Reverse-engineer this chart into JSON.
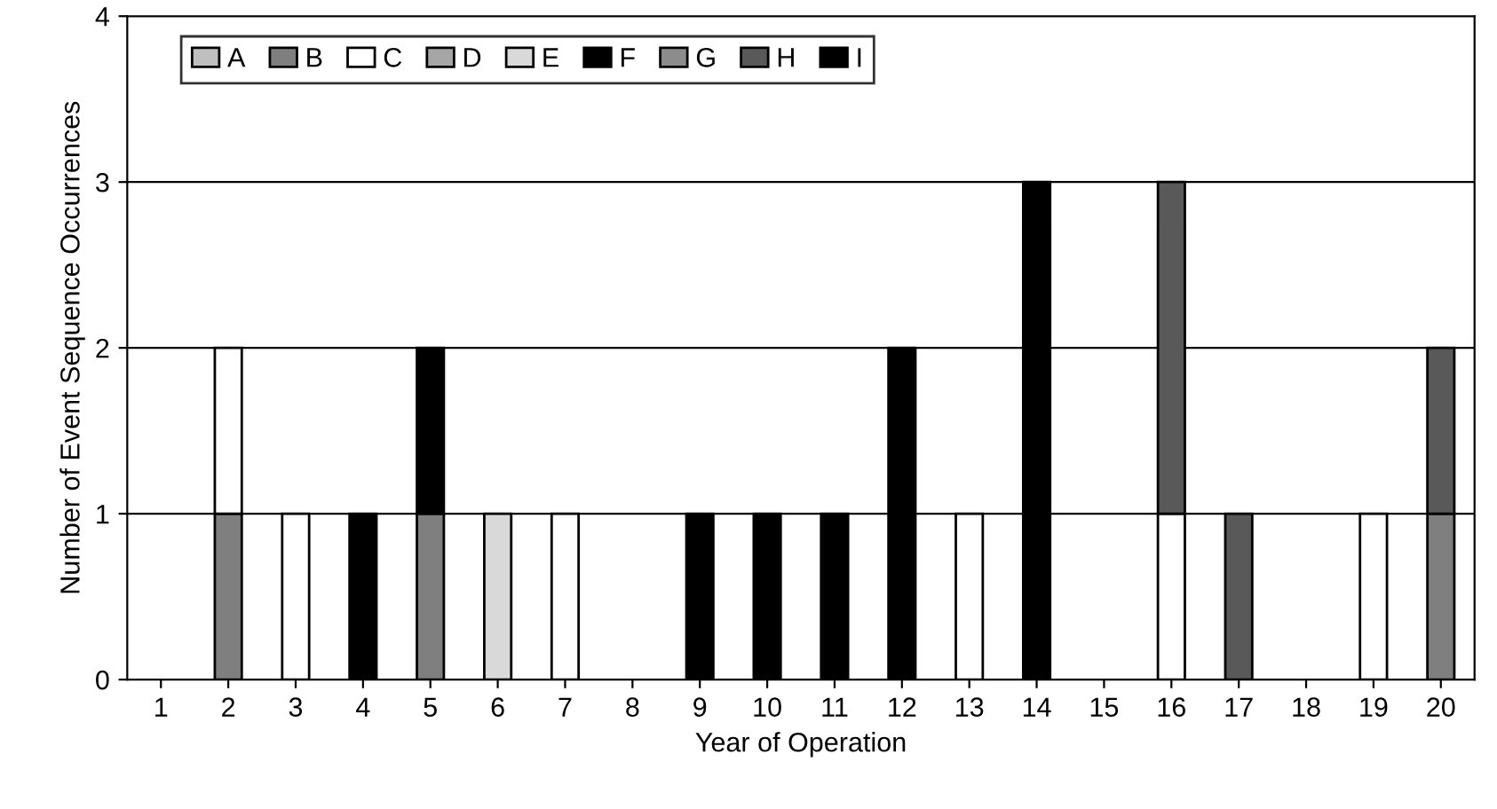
{
  "chart_data": {
    "type": "bar",
    "stacked": true,
    "xlabel": "Year of Operation",
    "ylabel": "Number of Event Sequence Occurrences",
    "categories": [
      "1",
      "2",
      "3",
      "4",
      "5",
      "6",
      "7",
      "8",
      "9",
      "10",
      "11",
      "12",
      "13",
      "14",
      "15",
      "16",
      "17",
      "18",
      "19",
      "20"
    ],
    "series": [
      {
        "name": "A",
        "color": "#bfbfbf",
        "values": [
          0,
          0,
          0,
          0,
          0,
          0,
          0,
          0,
          0,
          0,
          0,
          0,
          0,
          0,
          0,
          0,
          0,
          0,
          0,
          0
        ]
      },
      {
        "name": "B",
        "color": "#7f7f7f",
        "values": [
          0,
          1,
          0,
          0,
          1,
          0,
          0,
          0,
          0,
          0,
          0,
          0,
          0,
          0,
          0,
          0,
          0,
          0,
          0,
          1
        ]
      },
      {
        "name": "C",
        "color": "#ffffff",
        "values": [
          0,
          1,
          1,
          0,
          0,
          0,
          1,
          0,
          0,
          0,
          0,
          0,
          1,
          0,
          0,
          1,
          0,
          0,
          1,
          0
        ]
      },
      {
        "name": "D",
        "color": "#a6a6a6",
        "values": [
          0,
          0,
          0,
          0,
          0,
          0,
          0,
          0,
          0,
          0,
          0,
          0,
          0,
          0,
          0,
          0,
          0,
          0,
          0,
          0
        ]
      },
      {
        "name": "E",
        "color": "#d9d9d9",
        "values": [
          0,
          0,
          0,
          0,
          0,
          1,
          0,
          0,
          0,
          0,
          0,
          0,
          0,
          0,
          0,
          0,
          0,
          0,
          0,
          0
        ]
      },
      {
        "name": "F",
        "color": "#000000",
        "values": [
          0,
          0,
          0,
          1,
          1,
          0,
          0,
          0,
          1,
          1,
          1,
          2,
          0,
          3,
          0,
          0,
          0,
          0,
          0,
          0
        ]
      },
      {
        "name": "G",
        "color": "#8c8c8c",
        "values": [
          0,
          0,
          0,
          0,
          0,
          0,
          0,
          0,
          0,
          0,
          0,
          0,
          0,
          0,
          0,
          0,
          0,
          0,
          0,
          0
        ]
      },
      {
        "name": "H",
        "color": "#595959",
        "values": [
          0,
          0,
          0,
          0,
          0,
          0,
          0,
          0,
          0,
          0,
          0,
          0,
          0,
          0,
          0,
          2,
          1,
          0,
          0,
          1
        ]
      },
      {
        "name": "I",
        "color": "#000000",
        "values": [
          0,
          0,
          0,
          0,
          0,
          0,
          0,
          0,
          0,
          0,
          0,
          0,
          0,
          0,
          0,
          0,
          0,
          0,
          0,
          0
        ]
      }
    ],
    "ylim": [
      0,
      4
    ],
    "yticks": [
      0,
      1,
      2,
      3,
      4
    ],
    "grid": "y",
    "legend": "top left"
  }
}
